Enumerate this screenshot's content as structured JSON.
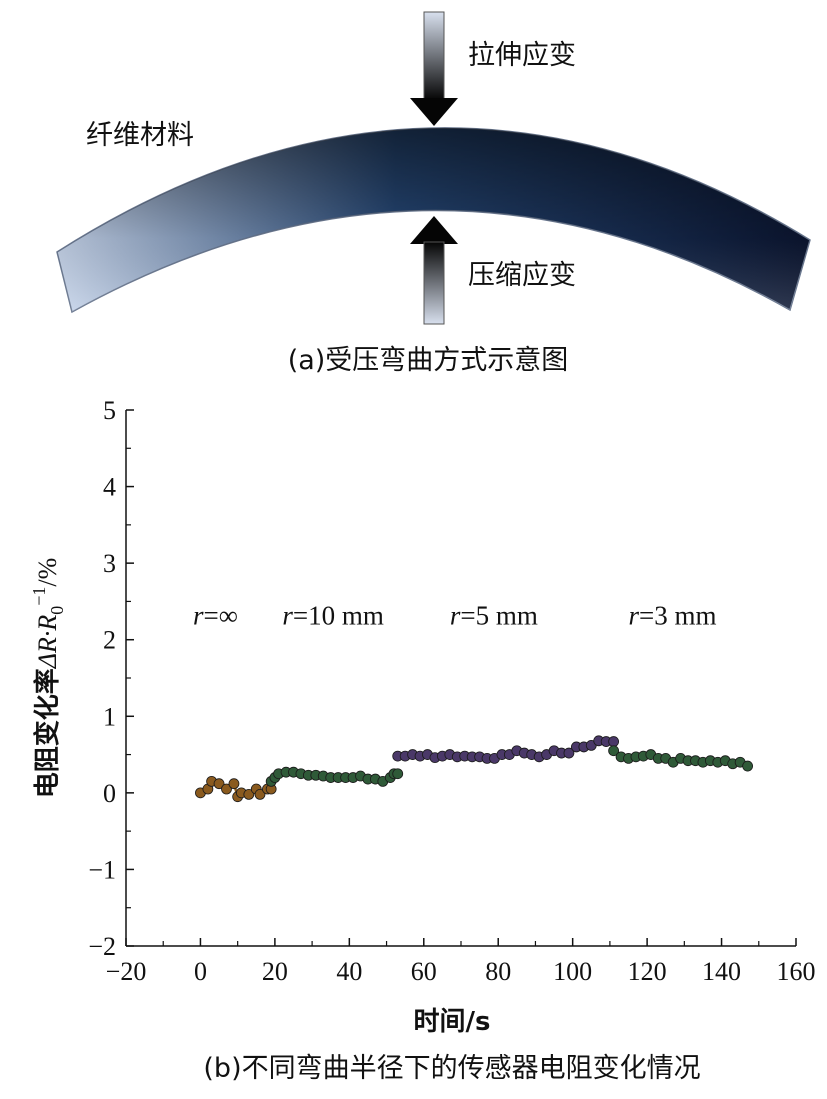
{
  "diagram": {
    "material_label": "纤维材料",
    "top_arrow_label": "拉伸应变",
    "bottom_arrow_label": "压缩应变",
    "caption": "(a)受压弯曲方式示意图",
    "colors": {
      "fiber_dark": "#0b1530",
      "fiber_mid": "#274a7a",
      "fiber_light": "#c8d6ec"
    }
  },
  "chart_data": {
    "type": "scatter",
    "caption": "(b)不同弯曲半径下的传感器电阻变化情况",
    "xlabel": "时间/s",
    "ylabel_prefix": "电阻变化率",
    "ylabel_symbol": "ΔR·R",
    "ylabel_sub": "0",
    "ylabel_sup": "−1",
    "ylabel_unit": "/%",
    "xlim": [
      -20,
      160
    ],
    "ylim": [
      -2,
      5
    ],
    "xticks": [
      -20,
      0,
      20,
      40,
      60,
      80,
      100,
      120,
      140,
      160
    ],
    "xtick_labels": [
      "−20",
      "0",
      "20",
      "40",
      "60",
      "80",
      "100",
      "120",
      "140",
      "160"
    ],
    "yticks": [
      -2,
      -1,
      0,
      1,
      2,
      3,
      4,
      5
    ],
    "ytick_labels": [
      "−2",
      "−1",
      "0",
      "1",
      "2",
      "3",
      "4",
      "5"
    ],
    "annotations": [
      {
        "r": "r",
        "rest": "=∞",
        "x": -2,
        "y": 2.2
      },
      {
        "r": "r",
        "rest": "=10 mm",
        "x": 22,
        "y": 2.2
      },
      {
        "r": "r",
        "rest": "=5 mm",
        "x": 67,
        "y": 2.2
      },
      {
        "r": "r",
        "rest": "=3 mm",
        "x": 115,
        "y": 2.2
      }
    ],
    "series": [
      {
        "color": "#8a5a1e",
        "x": [
          0,
          2,
          3,
          5,
          7,
          9,
          10,
          11,
          13,
          15,
          16,
          18,
          19
        ],
        "y": [
          0.0,
          0.05,
          0.15,
          0.12,
          0.05,
          0.12,
          -0.05,
          0.0,
          -0.02,
          0.05,
          -0.02,
          0.05,
          0.05
        ]
      },
      {
        "color": "#2f5a38",
        "x": [
          19,
          20,
          21,
          23,
          25,
          27,
          29,
          31,
          33,
          35,
          37,
          39,
          41,
          43,
          45,
          47,
          49,
          51,
          52,
          53
        ],
        "y": [
          0.15,
          0.2,
          0.25,
          0.27,
          0.27,
          0.25,
          0.23,
          0.23,
          0.22,
          0.2,
          0.2,
          0.2,
          0.2,
          0.22,
          0.18,
          0.18,
          0.15,
          0.2,
          0.25,
          0.25
        ]
      },
      {
        "color": "#4a3868",
        "x": [
          53,
          55,
          57,
          59,
          61,
          63,
          65,
          67,
          69,
          71,
          73,
          75,
          77,
          79,
          81,
          83,
          85,
          87,
          89,
          91,
          93,
          95,
          97,
          99,
          101,
          103,
          105,
          107,
          109,
          111
        ],
        "y": [
          0.48,
          0.48,
          0.5,
          0.48,
          0.5,
          0.46,
          0.48,
          0.5,
          0.47,
          0.48,
          0.47,
          0.47,
          0.45,
          0.45,
          0.5,
          0.5,
          0.55,
          0.52,
          0.5,
          0.47,
          0.5,
          0.55,
          0.52,
          0.52,
          0.6,
          0.6,
          0.62,
          0.68,
          0.67,
          0.67
        ]
      },
      {
        "color": "#2f5a38",
        "x": [
          111,
          113,
          115,
          117,
          119,
          121,
          123,
          125,
          127,
          129,
          131,
          133,
          135,
          137,
          139,
          141,
          143,
          145,
          147
        ],
        "y": [
          0.55,
          0.47,
          0.45,
          0.47,
          0.48,
          0.5,
          0.45,
          0.45,
          0.4,
          0.45,
          0.42,
          0.42,
          0.4,
          0.42,
          0.4,
          0.42,
          0.38,
          0.4,
          0.35
        ]
      }
    ]
  }
}
